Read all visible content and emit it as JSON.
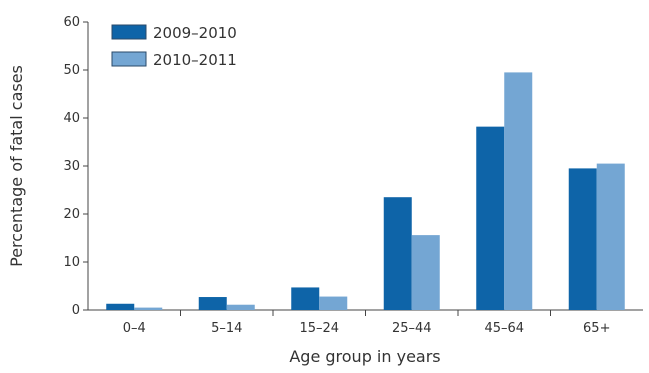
{
  "chart_data": {
    "type": "bar",
    "title": "",
    "xlabel": "Age group in years",
    "ylabel": "Percentage of fatal cases",
    "categories": [
      "0–4",
      "5–14",
      "15–24",
      "25–44",
      "45–64",
      "65+"
    ],
    "series": [
      {
        "name": "2009–2010",
        "color": "#0e64a8",
        "values": [
          1.3,
          2.7,
          4.7,
          23.5,
          38.2,
          29.5
        ]
      },
      {
        "name": "2010–2011",
        "color": "#74a6d3",
        "values": [
          0.5,
          1.1,
          2.8,
          15.6,
          49.5,
          30.5
        ]
      }
    ],
    "ylim": [
      0,
      60
    ],
    "yticks": [
      "0",
      "10",
      "20",
      "30",
      "40",
      "50",
      "60"
    ],
    "grid": false,
    "legend_position": "top-left"
  }
}
